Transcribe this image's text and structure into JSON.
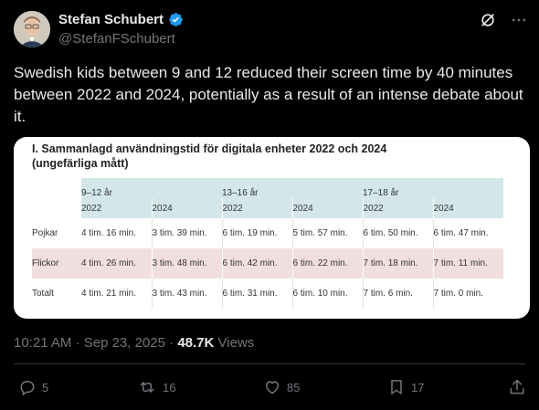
{
  "author": {
    "name": "Stefan Schubert",
    "handle": "@StefanFSchubert"
  },
  "tweet": {
    "text": "Swedish kids between 9 and 12 reduced their screen time by 40 minutes between 2022 and 2024, potentially as a result of an intense debate about it."
  },
  "table": {
    "title": "I. Sammanlagd användningstid för digitala enheter 2022 och 2024",
    "subtitle": "(ungefärliga mått)",
    "age_groups": [
      "9–12 år",
      "13–16 år",
      "17–18 år"
    ],
    "years": [
      "2022",
      "2024",
      "2022",
      "2024",
      "2022",
      "2024"
    ],
    "rows": [
      {
        "label": "Pojkar",
        "cells": [
          "4 tim. 16 min.",
          "3 tim. 39 min.",
          "6 tim. 19 min.",
          "5 tim. 57 min.",
          "6 tim. 50 min.",
          "6 tim. 47 min."
        ]
      },
      {
        "label": "Flickor",
        "cells": [
          "4 tim. 26 min.",
          "3 tim. 48 min.",
          "6 tim. 42 min.",
          "6 tim. 22 min.",
          "7 tim. 18 min.",
          "7 tim. 11 min."
        ]
      },
      {
        "label": "Totalt",
        "cells": [
          "4 tim. 21 min.",
          "3 tim. 43 min.",
          "6 tim. 31 min.",
          "6 tim. 10 min.",
          "7 tim. 6 min.",
          "7 tim. 0 min."
        ]
      }
    ]
  },
  "meta": {
    "time": "10:21 AM",
    "sep1": "·",
    "date": "Sep 23, 2025",
    "sep2": "·",
    "views_count": "48.7K",
    "views_label": "Views"
  },
  "actions": {
    "replies": "5",
    "reposts": "16",
    "likes": "85",
    "bookmarks": "17"
  },
  "colors": {
    "accent_verified": "#1d9bf0",
    "header_bg": "#d3e7ea",
    "flickor_row_bg": "#f1dfdf"
  }
}
